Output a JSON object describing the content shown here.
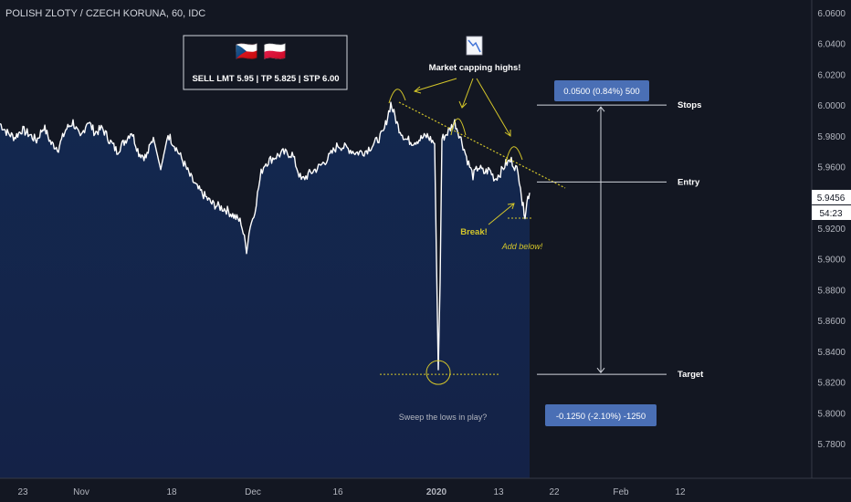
{
  "header": {
    "title": "POLISH ZLOTY / CZECH KORUNA, 60, IDC"
  },
  "trade_box": {
    "flags": [
      "🇨🇿",
      "🇵🇱"
    ],
    "text": "SELL LMT 5.95 | TP 5.825 | STP 6.00"
  },
  "annotations": {
    "capping": "Market capping highs!",
    "break": "Break!",
    "add_below": "Add below!",
    "sweep": "Sweep the lows in play?",
    "stops": "Stops",
    "entry": "Entry",
    "target": "Target",
    "stop_measure": "0.0500 (0.84%) 500",
    "target_measure": "-0.1250 (-2.10%) -1250"
  },
  "price_axis": {
    "current_price": "5.9456",
    "countdown": "54:23"
  },
  "colors": {
    "background": "#131722",
    "area_fill": "#13254a",
    "line": "#ffffff",
    "annotation": "#d4c62a",
    "label_box": "#4a6fb5"
  },
  "chart_data": {
    "type": "line",
    "title": "POLISH ZLOTY / CZECH KORUNA, 60, IDC",
    "ylim": [
      5.775,
      6.065
    ],
    "y_ticks": [
      "6.0600",
      "6.0400",
      "6.0200",
      "6.0000",
      "5.9800",
      "5.9600",
      "5.9400",
      "5.9200",
      "5.9000",
      "5.8800",
      "5.8600",
      "5.8400",
      "5.8200",
      "5.8000",
      "5.7800"
    ],
    "x_ticks": [
      "23",
      "Nov",
      "18",
      "Dec",
      "16",
      "2020",
      "13",
      "22",
      "Feb",
      "12"
    ],
    "series": [
      {
        "x": [
          0,
          8,
          16,
          24,
          32,
          40,
          48,
          56,
          64,
          72,
          80,
          88,
          96,
          104,
          112,
          120,
          128,
          136,
          144,
          152,
          160,
          168,
          176,
          184,
          192,
          200,
          208,
          216,
          224,
          232,
          240,
          248,
          256,
          264,
          270,
          274,
          278,
          282,
          286,
          290,
          300,
          310,
          320,
          330,
          340,
          350,
          360,
          370,
          380,
          390,
          400,
          410,
          420,
          428,
          436,
          444,
          452,
          460,
          468,
          476,
          478,
          480,
          482,
          484,
          490,
          498,
          506,
          512,
          518,
          524,
          530,
          536,
          542,
          548,
          554,
          560,
          566,
          570,
          572,
          575,
          578,
          580
        ],
        "y": [
          5.988,
          5.982,
          5.979,
          5.984,
          5.981,
          5.977,
          5.986,
          5.975,
          5.972,
          5.984,
          5.989,
          5.978,
          5.99,
          5.982,
          5.985,
          5.977,
          5.97,
          5.976,
          5.983,
          5.969,
          5.966,
          5.979,
          5.958,
          5.981,
          5.973,
          5.964,
          5.954,
          5.946,
          5.941,
          5.936,
          5.934,
          5.932,
          5.928,
          5.924,
          5.906,
          5.922,
          5.928,
          5.942,
          5.956,
          5.962,
          5.966,
          5.969,
          5.968,
          5.951,
          5.956,
          5.96,
          5.966,
          5.974,
          5.972,
          5.969,
          5.97,
          5.975,
          5.982,
          6.001,
          5.986,
          5.978,
          5.976,
          5.978,
          5.98,
          5.975,
          5.9,
          5.828,
          5.885,
          5.978,
          5.982,
          5.989,
          5.976,
          5.964,
          5.954,
          5.96,
          5.956,
          5.958,
          5.952,
          5.956,
          5.962,
          5.964,
          5.958,
          5.949,
          5.936,
          5.929,
          5.94,
          5.943
        ]
      }
    ],
    "levels": {
      "stops": 6.0,
      "entry": 5.95,
      "target": 5.825,
      "sweep": 5.825,
      "add_below": 5.9265
    },
    "grid": false
  }
}
